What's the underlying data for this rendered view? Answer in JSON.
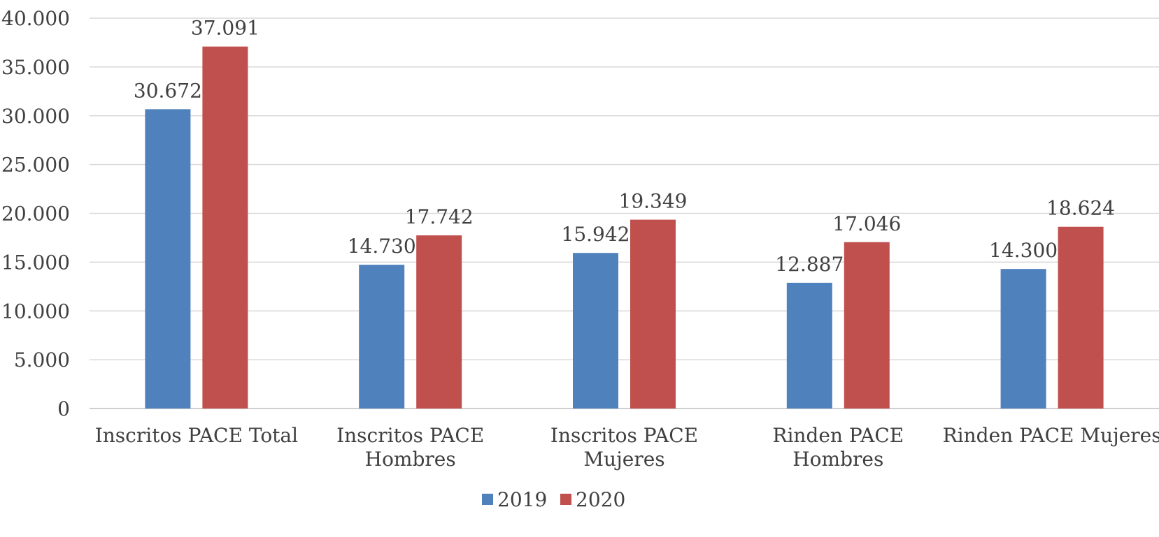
{
  "chart_data": {
    "type": "bar",
    "title": "",
    "xlabel": "",
    "ylabel": "",
    "ylim": [
      0,
      40000
    ],
    "yticks": [
      0,
      5000,
      10000,
      15000,
      20000,
      25000,
      30000,
      35000,
      40000
    ],
    "ytick_labels": [
      "0",
      "5.000",
      "10.000",
      "15.000",
      "20.000",
      "25.000",
      "30.000",
      "35.000",
      "40.000"
    ],
    "grid": true,
    "legend_position": "bottom",
    "categories": [
      [
        "Inscritos PACE Total"
      ],
      [
        "Inscritos PACE",
        "Hombres"
      ],
      [
        "Inscritos PACE",
        "Mujeres"
      ],
      [
        "Rinden PACE",
        "Hombres"
      ],
      [
        "Rinden PACE Mujeres"
      ]
    ],
    "series": [
      {
        "name": "2019",
        "color": "#4f81bd",
        "values": [
          30672,
          14730,
          15942,
          12887,
          14300
        ],
        "labels": [
          "30.672",
          "14.730",
          "15.942",
          "12.887",
          "14.300"
        ]
      },
      {
        "name": "2020",
        "color": "#c0504d",
        "values": [
          37091,
          17742,
          19349,
          17046,
          18624
        ],
        "labels": [
          "37.091",
          "17.742",
          "19.349",
          "17.046",
          "18.624"
        ]
      }
    ]
  }
}
